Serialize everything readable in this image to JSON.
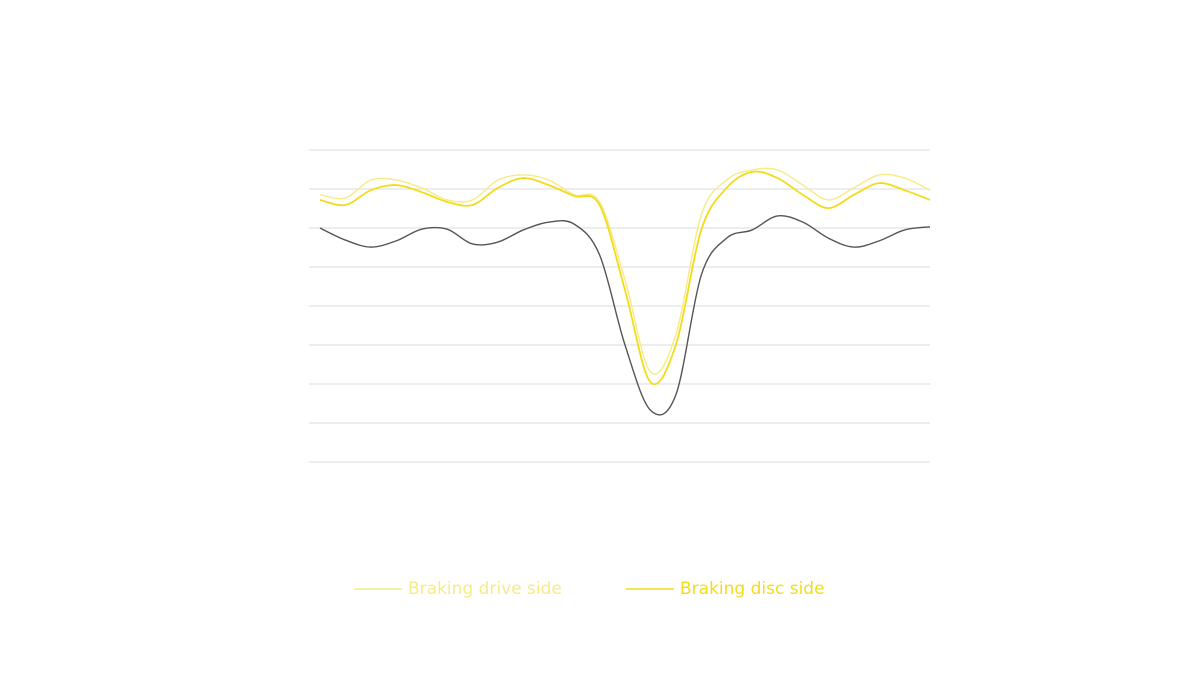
{
  "chart_data": {
    "type": "line",
    "categories": [
      null,
      null,
      null,
      null,
      null,
      null,
      null,
      null,
      null,
      null,
      null,
      null,
      null,
      null,
      null,
      null,
      null,
      null,
      null,
      null,
      null,
      null,
      null,
      null,
      null
    ],
    "ylim": [
      0,
      8
    ],
    "yticks": [
      0,
      1,
      2,
      3,
      4,
      5,
      6,
      7,
      8
    ],
    "grid": true,
    "legend": "bottom",
    "series": [
      {
        "name": "Braking drive side",
        "color": "#f6eb86",
        "values": [
          6.85,
          6.77,
          7.23,
          7.23,
          7.03,
          6.72,
          6.72,
          7.23,
          7.36,
          7.23,
          6.85,
          6.67,
          4.67,
          2.31,
          3.26,
          6.33,
          7.23,
          7.49,
          7.49,
          7.1,
          6.72,
          7.03,
          7.36,
          7.28,
          6.97
        ]
      },
      {
        "name": "Braking disc side",
        "color": "#f2dc1a",
        "values": [
          6.72,
          6.59,
          6.97,
          7.1,
          6.92,
          6.67,
          6.59,
          7.03,
          7.28,
          7.1,
          6.82,
          6.59,
          4.41,
          2.05,
          3.0,
          5.95,
          7.03,
          7.44,
          7.28,
          6.85,
          6.51,
          6.85,
          7.15,
          6.97,
          6.72
        ]
      },
      {
        "color": "#555555",
        "values": [
          6.0,
          5.69,
          5.51,
          5.67,
          5.97,
          5.97,
          5.59,
          5.64,
          5.95,
          6.15,
          6.1,
          5.31,
          3.0,
          1.33,
          1.72,
          4.79,
          5.74,
          5.95,
          6.31,
          6.15,
          5.74,
          5.51,
          5.67,
          5.95,
          6.03
        ]
      }
    ]
  }
}
